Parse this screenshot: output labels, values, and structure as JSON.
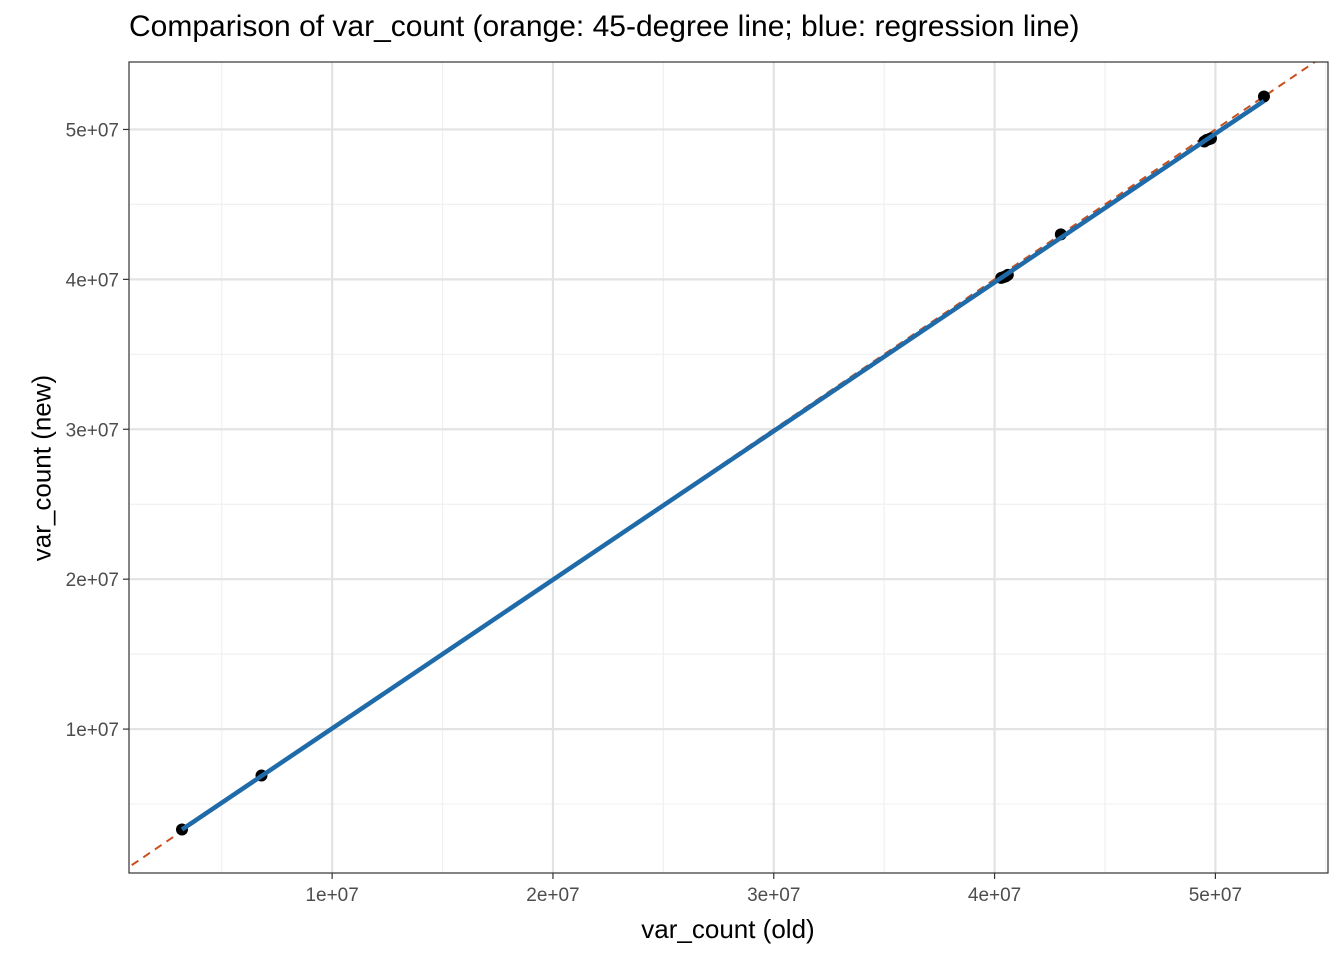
{
  "chart_data": {
    "type": "scatter",
    "title": "Comparison of var_count (orange: 45-degree line; blue: regression line)",
    "xlabel": "var_count (old)",
    "ylabel": "var_count (new)",
    "xlim": [
      800000,
      55100000
    ],
    "ylim": [
      400000,
      54500000
    ],
    "x_ticks": [
      10000000,
      20000000,
      30000000,
      40000000,
      50000000
    ],
    "x_tick_labels": [
      "1e+07",
      "2e+07",
      "3e+07",
      "4e+07",
      "5e+07"
    ],
    "y_ticks": [
      10000000,
      20000000,
      30000000,
      40000000,
      50000000
    ],
    "y_tick_labels": [
      "1e+07",
      "2e+07",
      "3e+07",
      "4e+07",
      "5e+07"
    ],
    "grid": true,
    "points": [
      {
        "x": 3200000,
        "y": 3300000
      },
      {
        "x": 6800000,
        "y": 6900000
      },
      {
        "x": 40300000,
        "y": 40100000
      },
      {
        "x": 40400000,
        "y": 40150000
      },
      {
        "x": 40500000,
        "y": 40200000
      },
      {
        "x": 40600000,
        "y": 40300000
      },
      {
        "x": 43000000,
        "y": 43000000
      },
      {
        "x": 49500000,
        "y": 49200000
      },
      {
        "x": 49600000,
        "y": 49300000
      },
      {
        "x": 49700000,
        "y": 49350000
      },
      {
        "x": 49800000,
        "y": 49400000
      },
      {
        "x": 52200000,
        "y": 52200000
      }
    ],
    "reference_line": {
      "slope": 1,
      "intercept": 0,
      "style": "dashed",
      "color": "#c8501e"
    },
    "regression_line": {
      "x": [
        3200000,
        52200000
      ],
      "y": [
        3300000,
        51900000
      ],
      "color": "#1f6aa8"
    },
    "point_color": "#000000"
  }
}
